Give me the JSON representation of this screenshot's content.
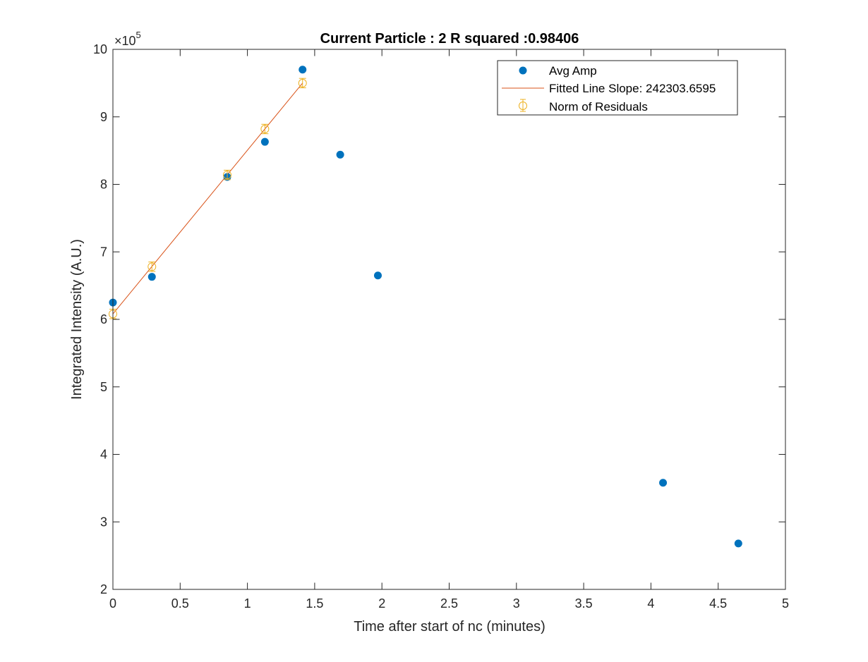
{
  "chart_data": {
    "type": "scatter",
    "title": "Current Particle : 2   R squared :0.98406",
    "xlabel": "Time after start of nc (minutes)",
    "ylabel": "Integrated Intensity (A.U.)",
    "y_exponent_base": "×10",
    "y_exponent_power": "5",
    "xlim": [
      0,
      5
    ],
    "ylim": [
      2,
      10
    ],
    "x_ticks": [
      0,
      0.5,
      1,
      1.5,
      2,
      2.5,
      3,
      3.5,
      4,
      4.5,
      5
    ],
    "x_tick_labels": [
      "0",
      "0.5",
      "1",
      "1.5",
      "2",
      "2.5",
      "3",
      "3.5",
      "4",
      "4.5",
      "5"
    ],
    "y_ticks": [
      2,
      3,
      4,
      5,
      6,
      7,
      8,
      9,
      10
    ],
    "y_tick_labels": [
      "2",
      "3",
      "4",
      "5",
      "6",
      "7",
      "8",
      "9",
      "10"
    ],
    "legend_position": "top-right",
    "box": true,
    "grid": false,
    "series": [
      {
        "name": "Avg Amp",
        "style": "markers",
        "color": "#0072BD",
        "points": [
          {
            "x": 0.0,
            "y": 6.25
          },
          {
            "x": 0.29,
            "y": 6.63
          },
          {
            "x": 0.85,
            "y": 8.11
          },
          {
            "x": 1.13,
            "y": 8.63
          },
          {
            "x": 1.41,
            "y": 9.7
          },
          {
            "x": 1.69,
            "y": 8.44
          },
          {
            "x": 1.97,
            "y": 6.65
          },
          {
            "x": 4.09,
            "y": 3.58
          },
          {
            "x": 4.65,
            "y": 2.68
          }
        ]
      },
      {
        "name": "Fitted Line Slope: 242303.6595",
        "style": "line",
        "color": "#D95319",
        "points": [
          {
            "x": 0.0,
            "y": 6.08
          },
          {
            "x": 1.41,
            "y": 9.5
          }
        ]
      },
      {
        "name": "Norm of Residuals",
        "style": "errorbar",
        "color": "#EDB120",
        "points": [
          {
            "x": 0.0,
            "y": 6.08,
            "err": 0.07
          },
          {
            "x": 0.29,
            "y": 6.78,
            "err": 0.07
          },
          {
            "x": 0.85,
            "y": 8.14,
            "err": 0.07
          },
          {
            "x": 1.13,
            "y": 8.82,
            "err": 0.07
          },
          {
            "x": 1.41,
            "y": 9.5,
            "err": 0.07
          }
        ]
      }
    ]
  }
}
